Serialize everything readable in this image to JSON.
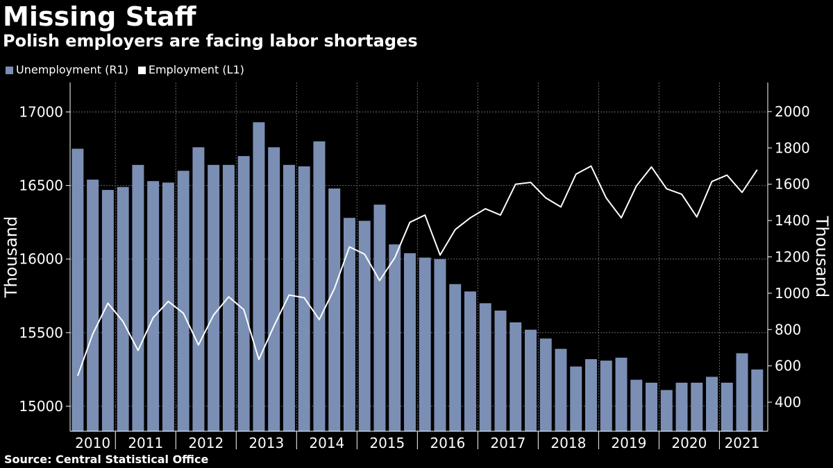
{
  "header": {
    "title": "Missing Staff",
    "subtitle": "Polish employers are facing labor shortages"
  },
  "legend": [
    {
      "label": "Unemployment (R1)",
      "color": "#7b8fb5"
    },
    {
      "label": "Employment (L1)",
      "color": "#ffffff"
    }
  ],
  "footer": {
    "source": "Source:  Central Statistical Office"
  },
  "chart_data": {
    "type": "bar+line",
    "title": "Missing Staff",
    "subtitle": "Polish employers are facing labor shortages",
    "left_axis": {
      "label": "Thousand",
      "range": [
        14830,
        17200
      ],
      "ticks": [
        15000,
        15500,
        16000,
        16500,
        17000
      ]
    },
    "right_axis": {
      "label": "Thousand",
      "range": [
        240,
        2160
      ],
      "ticks": [
        400,
        600,
        800,
        1000,
        1200,
        1400,
        1600,
        1800,
        2000
      ]
    },
    "x_tick_labels": [
      "2010",
      "2011",
      "2012",
      "2013",
      "2014",
      "2015",
      "2016",
      "2017",
      "2018",
      "2019",
      "2020",
      "2021"
    ],
    "bar_color": "#7b8fb5",
    "line_color": "#ffffff",
    "grid": true,
    "series": [
      {
        "name": "Unemployment (R1)",
        "axis": "left",
        "chart": "bar",
        "values": [
          16750,
          16540,
          16470,
          16490,
          16640,
          16530,
          16520,
          16600,
          16760,
          16640,
          16640,
          16700,
          16930,
          16760,
          16640,
          16630,
          16800,
          16480,
          16280,
          16260,
          16370,
          16100,
          16040,
          16010,
          16000,
          15830,
          15780,
          15700,
          15650,
          15570,
          15520,
          15460,
          15390,
          15270,
          15320,
          15310,
          15330,
          15180,
          15160,
          15110,
          15160,
          15160,
          15200,
          15160,
          15360,
          15250
        ]
      },
      {
        "name": "Employment (L1)",
        "axis": "right",
        "chart": "line",
        "values": [
          545,
          775,
          945,
          845,
          685,
          865,
          955,
          890,
          715,
          880,
          980,
          910,
          635,
          820,
          990,
          975,
          855,
          1025,
          1255,
          1215,
          1070,
          1195,
          1390,
          1430,
          1210,
          1350,
          1415,
          1465,
          1430,
          1600,
          1610,
          1525,
          1475,
          1655,
          1700,
          1525,
          1415,
          1590,
          1695,
          1575,
          1545,
          1420,
          1615,
          1650,
          1555,
          1680
        ]
      }
    ]
  }
}
